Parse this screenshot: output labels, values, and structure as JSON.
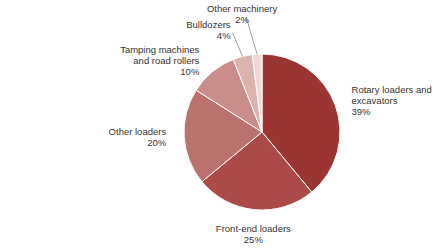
{
  "chart_data": {
    "type": "pie",
    "categories": [
      "Rotary loaders and excavators",
      "Front-end loaders",
      "Other loaders",
      "Tamping machines and road rollers",
      "Bulldozers",
      "Other machinery"
    ],
    "values": [
      39,
      25,
      20,
      10,
      4,
      2
    ],
    "value_labels": [
      "39%",
      "25%",
      "20%",
      "10%",
      "4%",
      "2%"
    ],
    "colors": [
      "#9b3532",
      "#ab4a46",
      "#bb716c",
      "#c98e89",
      "#dcb3ad",
      "#eed8d4"
    ],
    "data_labels": true
  }
}
